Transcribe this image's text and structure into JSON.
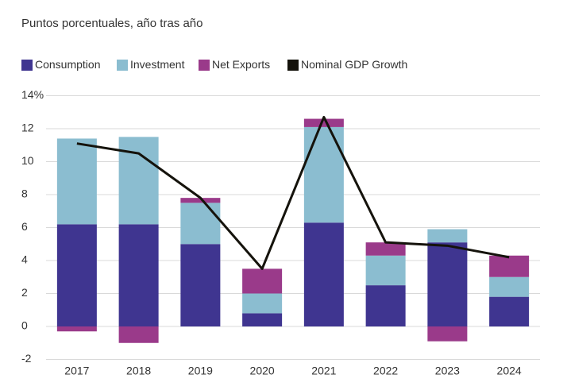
{
  "chart_data": {
    "type": "bar",
    "stacked": true,
    "subtitle": "Puntos porcentuales, año tras año",
    "categories": [
      "2017",
      "2018",
      "2019",
      "2020",
      "2021",
      "2022",
      "2023",
      "2024"
    ],
    "series": [
      {
        "name": "Consumption",
        "color": "#3f3590",
        "values": [
          6.2,
          6.2,
          5.0,
          0.8,
          6.3,
          2.5,
          5.1,
          1.8
        ]
      },
      {
        "name": "Investment",
        "color": "#8bbdd0",
        "values": [
          5.2,
          5.3,
          2.5,
          1.2,
          5.8,
          1.8,
          0.8,
          1.2
        ]
      },
      {
        "name": "Net Exports",
        "color": "#9a3a8a",
        "values": [
          -0.3,
          -1.0,
          0.3,
          1.5,
          0.5,
          0.8,
          -0.9,
          1.3
        ]
      },
      {
        "name": "Nominal GDP Growth",
        "color": "#15130c",
        "type": "line",
        "values": [
          11.1,
          10.5,
          7.8,
          3.5,
          12.7,
          5.1,
          4.9,
          4.2
        ]
      }
    ],
    "ylim": [
      -2,
      14
    ],
    "yticks": [
      -2,
      0,
      2,
      4,
      6,
      8,
      10,
      12,
      {
        "value": 14,
        "label": "14%"
      }
    ],
    "grid": true
  }
}
